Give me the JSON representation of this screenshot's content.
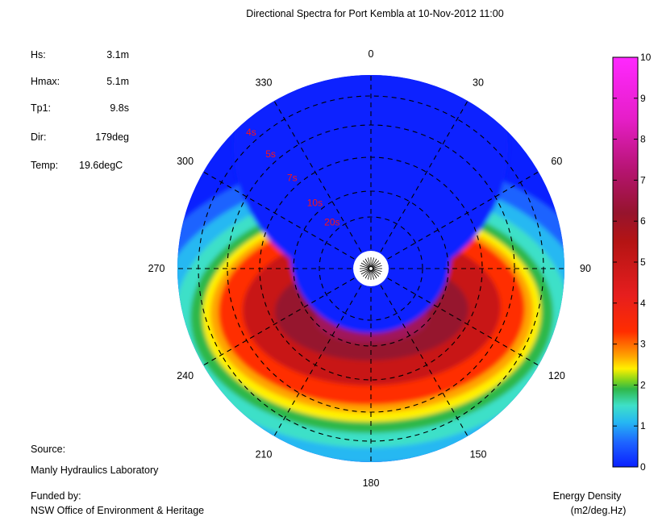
{
  "chart_data": {
    "type": "heatmap",
    "subtype": "polar-directional-spectrum",
    "title": "Directional Spectra for Port Kembla at 10-Nov-2012 11:00",
    "direction_ticks": [
      "0",
      "30",
      "60",
      "90",
      "120",
      "150",
      "180",
      "210",
      "240",
      "270",
      "300",
      "330"
    ],
    "period_rings": [
      "4s",
      "5s",
      "7s",
      "10s",
      "20s"
    ],
    "colorbar": {
      "ticks": [
        "0",
        "1",
        "2",
        "3",
        "4",
        "5",
        "6",
        "7",
        "8",
        "9",
        "10"
      ],
      "range": [
        0,
        10
      ],
      "label_line1": "Energy Density",
      "label_line2": "(m2/deg.Hz)"
    },
    "peak": {
      "direction_deg": 179,
      "period_s": 9.8,
      "energy_density": 6
    }
  },
  "stats": [
    {
      "label": "Hs:",
      "value": "3.1m"
    },
    {
      "label": "Hmax:",
      "value": "5.1m"
    },
    {
      "label": "Tp1:",
      "value": "9.8s"
    },
    {
      "label": "Dir:",
      "value": "179deg"
    },
    {
      "label": "Temp:",
      "value": "19.6degC"
    }
  ],
  "footer": {
    "source_label": "Source:",
    "source_value": "Manly Hydraulics Laboratory",
    "funded_label": "Funded by:",
    "funded_value": "NSW Office of Environment & Heritage"
  }
}
